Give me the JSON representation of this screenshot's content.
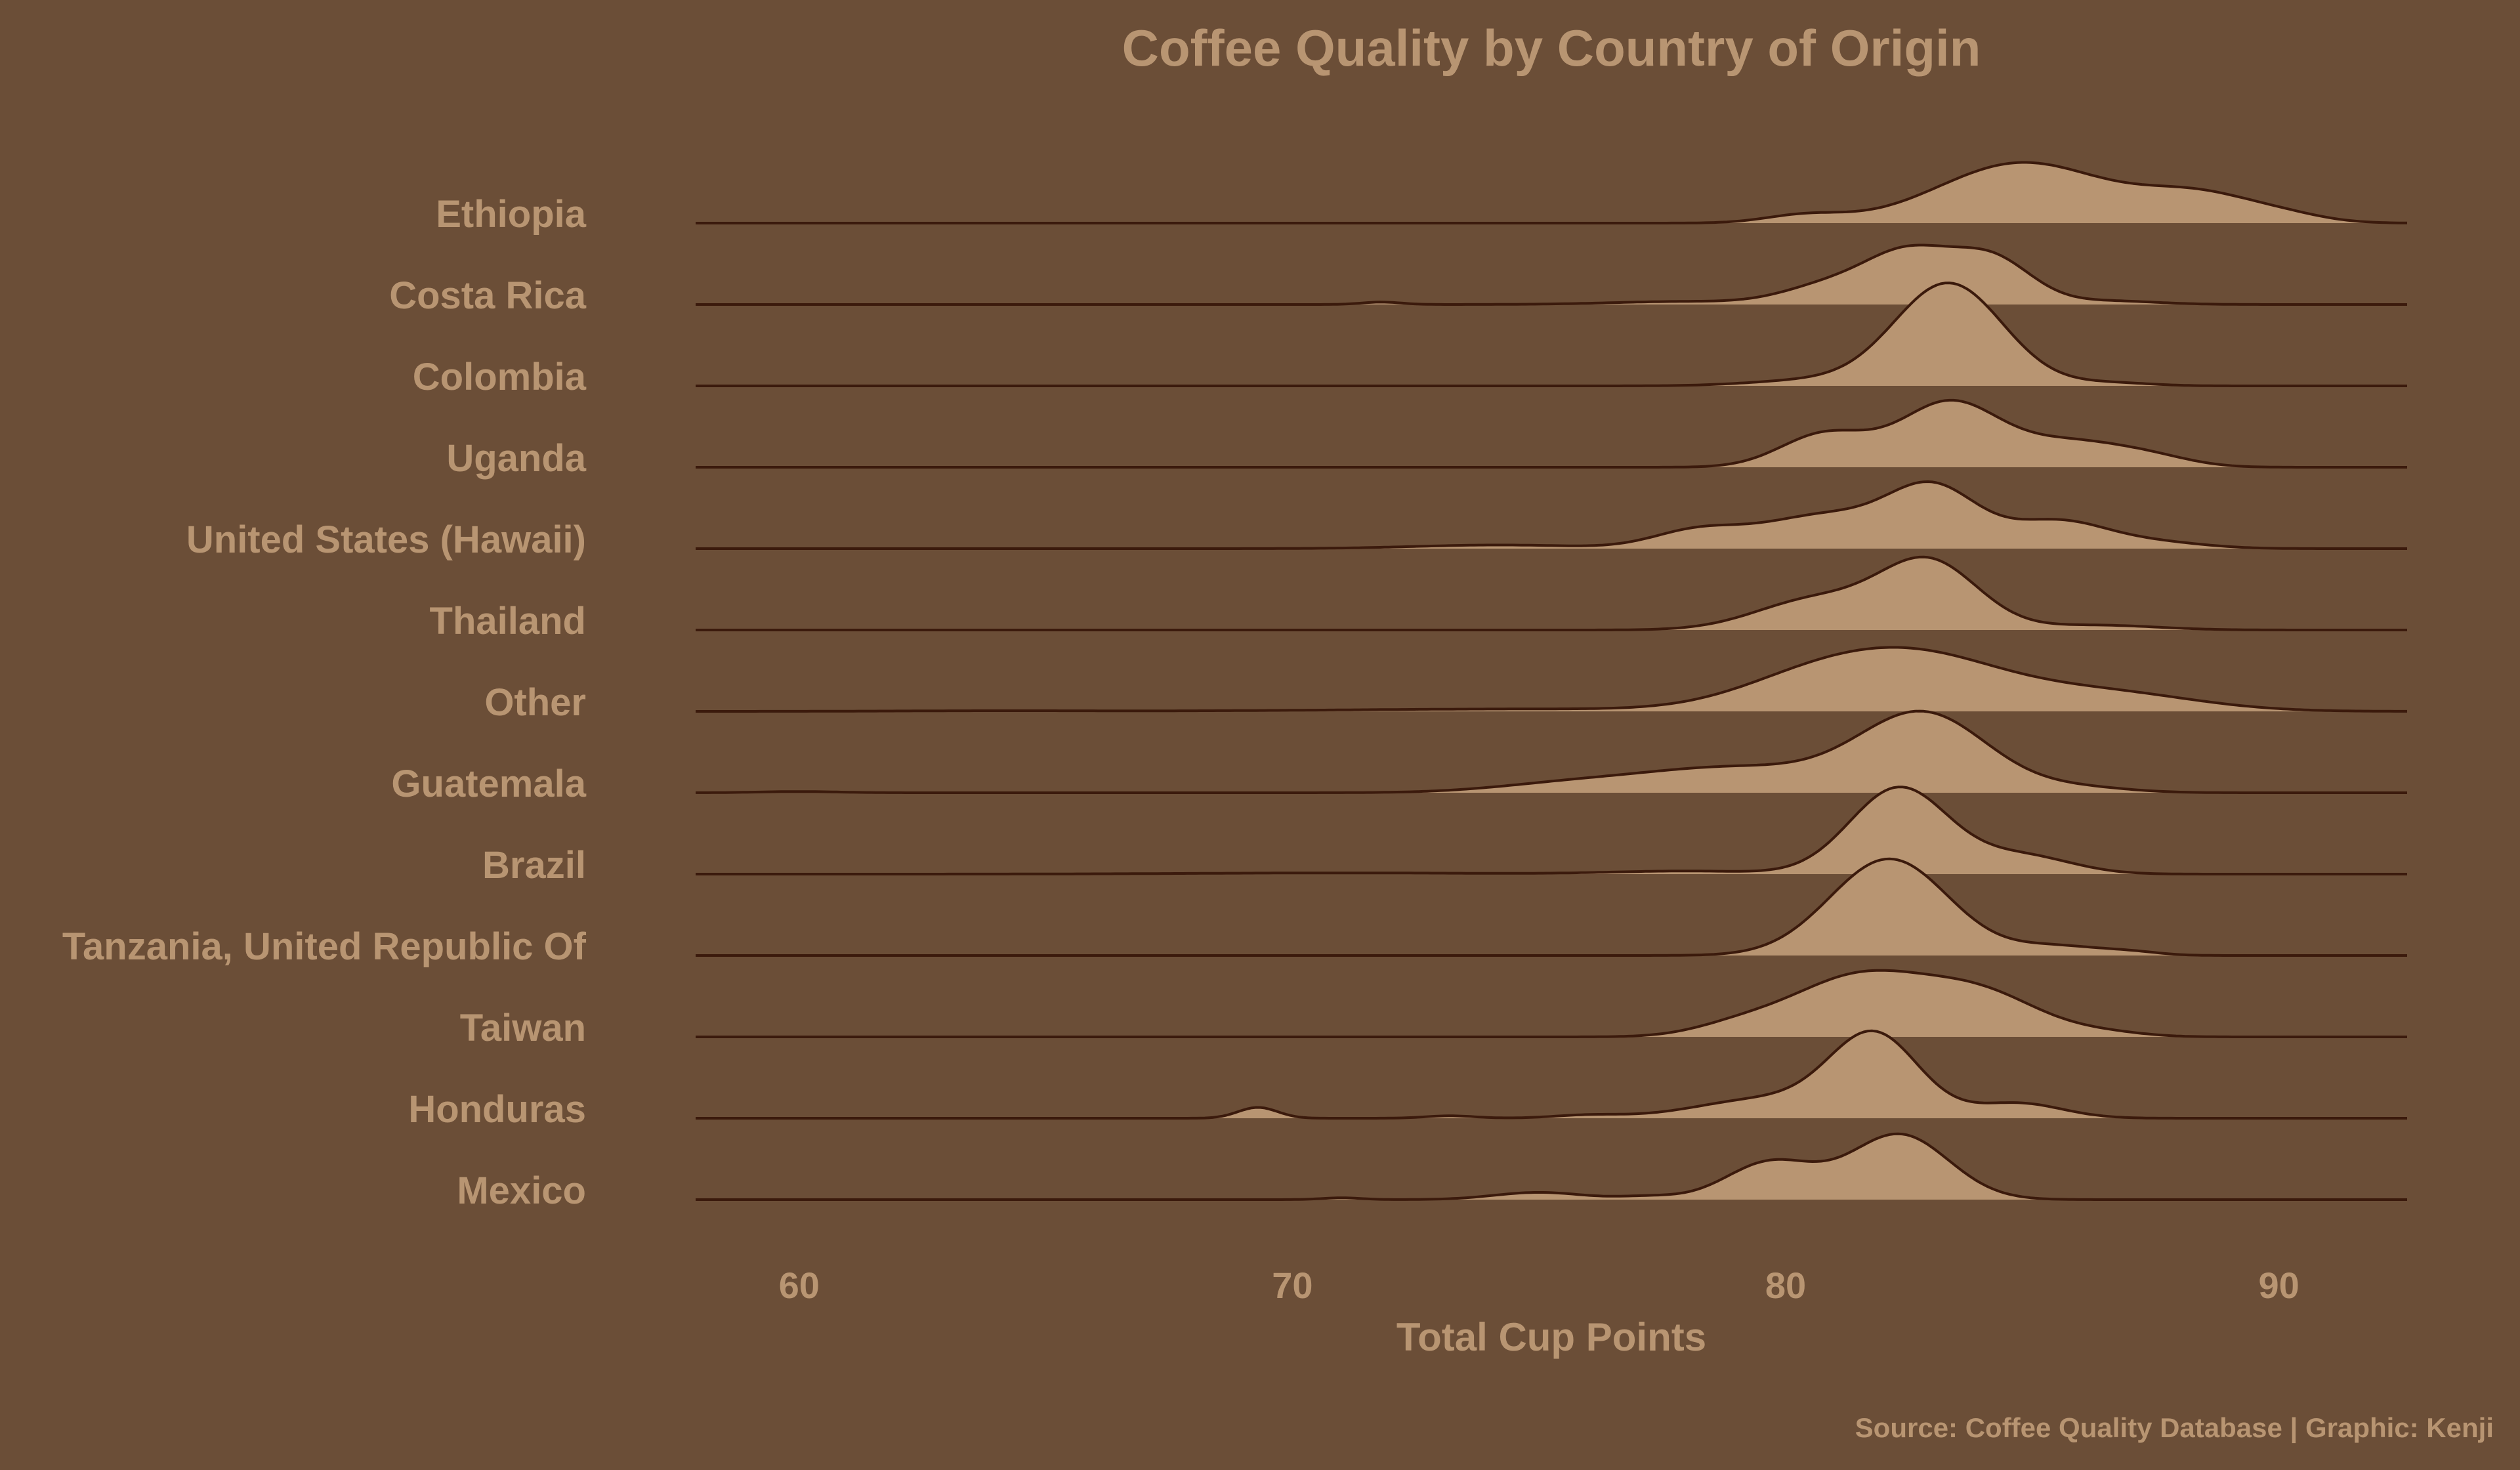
{
  "colors": {
    "background": "#6b4e37",
    "ridge_fill": "#b89572",
    "ridge_line": "#3b1a0c",
    "text": "#b89572"
  },
  "chart_data": {
    "type": "ridgeline",
    "title": "Coffee Quality by Country of Origin",
    "xlabel": "Total Cup Points",
    "caption": "Source: Coffee Quality Database | Graphic: Kenji",
    "xlim": [
      57.9,
      92.6
    ],
    "xticks": [
      60,
      70,
      80,
      90
    ],
    "countries": [
      {
        "name": "Ethiopia",
        "peaks": [
          [
            84.8,
            1.7,
            1.0
          ],
          [
            88.4,
            1.2,
            0.45
          ],
          [
            80.4,
            0.8,
            0.13
          ],
          [
            90.2,
            0.8,
            0.08
          ]
        ]
      },
      {
        "name": "Costa Rica",
        "peaks": [
          [
            82.5,
            0.9,
            0.85
          ],
          [
            84.2,
            0.8,
            0.72
          ],
          [
            80.8,
            0.9,
            0.28
          ],
          [
            71.8,
            0.4,
            0.04
          ],
          [
            86.5,
            1.0,
            0.06
          ],
          [
            78.0,
            1.5,
            0.05
          ]
        ]
      },
      {
        "name": "Colombia",
        "peaks": [
          [
            83.3,
            1.1,
            1.7
          ],
          [
            80.5,
            1.2,
            0.09
          ],
          [
            86.6,
            0.8,
            0.05
          ]
        ]
      },
      {
        "name": "Uganda",
        "peaks": [
          [
            83.3,
            1.0,
            1.05
          ],
          [
            80.8,
            0.9,
            0.55
          ],
          [
            85.8,
            1.2,
            0.42
          ],
          [
            87.5,
            0.8,
            0.1
          ]
        ]
      },
      {
        "name": "United States (Hawaii)",
        "peaks": [
          [
            83.0,
            0.9,
            0.95
          ],
          [
            80.8,
            1.3,
            0.55
          ],
          [
            78.2,
            0.9,
            0.28
          ],
          [
            85.5,
            1.0,
            0.45
          ],
          [
            74.2,
            1.7,
            0.06
          ],
          [
            87.5,
            1.0,
            0.1
          ]
        ]
      },
      {
        "name": "Thailand",
        "peaks": [
          [
            82.9,
            1.0,
            1.12
          ],
          [
            80.6,
            1.2,
            0.5
          ],
          [
            86.3,
            1.2,
            0.08
          ]
        ]
      },
      {
        "name": "Other",
        "peaks": [
          [
            82.6,
            1.8,
            0.9
          ],
          [
            80.3,
            1.5,
            0.35
          ],
          [
            86.5,
            1.8,
            0.3
          ],
          [
            75.0,
            4.0,
            0.04
          ],
          [
            64.0,
            2.0,
            0.01
          ]
        ]
      },
      {
        "name": "Guatemala",
        "peaks": [
          [
            82.8,
            1.3,
            1.28
          ],
          [
            79.0,
            2.0,
            0.42
          ],
          [
            75.5,
            1.5,
            0.12
          ],
          [
            86.0,
            1.0,
            0.08
          ],
          [
            60.0,
            0.8,
            0.02
          ]
        ]
      },
      {
        "name": "Brazil",
        "peaks": [
          [
            82.3,
            1.0,
            1.43
          ],
          [
            84.8,
            1.0,
            0.3
          ],
          [
            78.0,
            1.5,
            0.05
          ],
          [
            71.0,
            3.0,
            0.02
          ]
        ]
      },
      {
        "name": "Tanzania, United Republic Of",
        "peaks": [
          [
            82.1,
            1.2,
            1.6
          ],
          [
            85.5,
            0.9,
            0.15
          ],
          [
            87.0,
            0.6,
            0.05
          ]
        ]
      },
      {
        "name": "Taiwan",
        "peaks": [
          [
            81.5,
            1.4,
            1.0
          ],
          [
            84.0,
            1.2,
            0.65
          ],
          [
            79.0,
            0.9,
            0.15
          ],
          [
            86.5,
            0.8,
            0.06
          ]
        ]
      },
      {
        "name": "Honduras",
        "peaks": [
          [
            81.8,
            0.9,
            1.35
          ],
          [
            79.6,
            1.4,
            0.32
          ],
          [
            69.3,
            0.4,
            0.18
          ],
          [
            84.7,
            0.9,
            0.25
          ],
          [
            73.2,
            0.5,
            0.04
          ],
          [
            76.0,
            0.7,
            0.05
          ]
        ]
      },
      {
        "name": "Mexico",
        "peaks": [
          [
            82.3,
            1.0,
            1.08
          ],
          [
            79.7,
            0.9,
            0.62
          ],
          [
            75.0,
            0.9,
            0.12
          ],
          [
            71.0,
            0.4,
            0.03
          ],
          [
            77.2,
            0.6,
            0.05
          ]
        ]
      }
    ]
  }
}
